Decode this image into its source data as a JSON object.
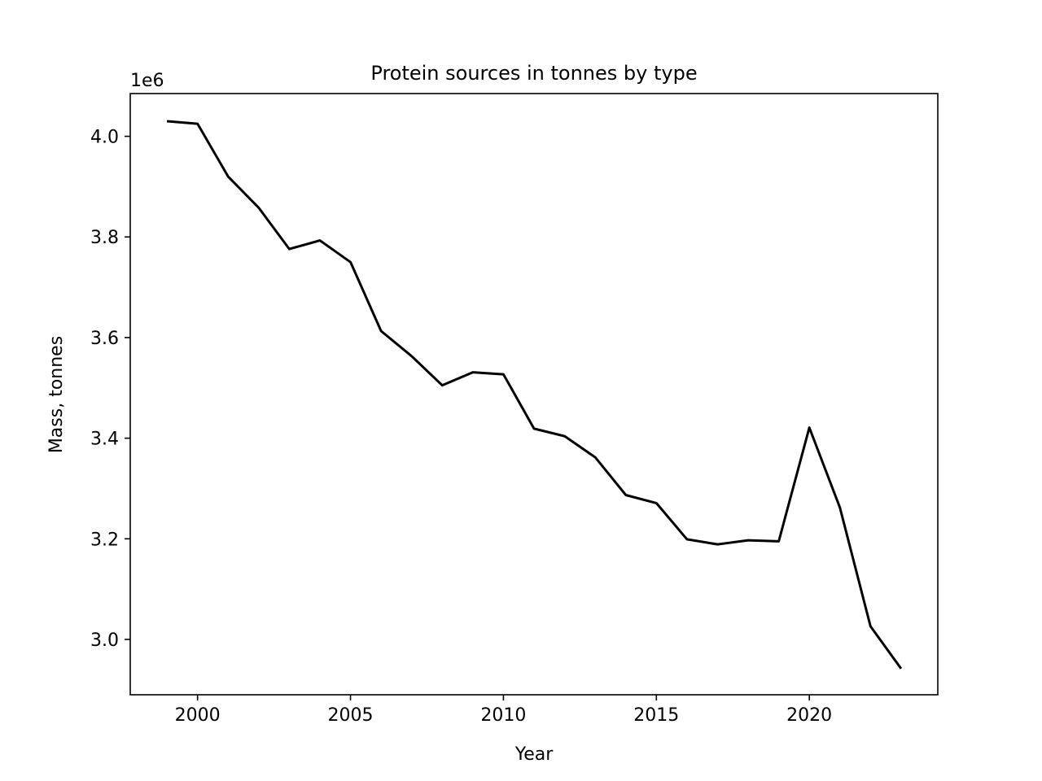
{
  "chart_data": {
    "type": "line",
    "title": "Protein sources in tonnes by type",
    "xlabel": "Year",
    "ylabel": "Mass, tonnes",
    "y_offset_label": "1e6",
    "y_scale_factor": 1000000,
    "xlim": [
      1997.8,
      2024.2
    ],
    "ylim": [
      2890000,
      4085000
    ],
    "x_ticks": [
      2000,
      2005,
      2010,
      2015,
      2020
    ],
    "x_tick_labels": [
      "2000",
      "2005",
      "2010",
      "2015",
      "2020"
    ],
    "y_ticks": [
      3000000,
      3200000,
      3400000,
      3600000,
      3800000,
      4000000
    ],
    "y_tick_labels": [
      "3.0",
      "3.2",
      "3.4",
      "3.6",
      "3.8",
      "4.0"
    ],
    "grid": false,
    "legend": "none",
    "series": [
      {
        "color": "#000000",
        "x": [
          1999,
          2000,
          2001,
          2002,
          2003,
          2004,
          2005,
          2006,
          2007,
          2008,
          2009,
          2010,
          2011,
          2012,
          2013,
          2014,
          2015,
          2016,
          2017,
          2018,
          2019,
          2020,
          2021,
          2022,
          2023
        ],
        "y": [
          4030000,
          4025000,
          3920000,
          3858000,
          3776000,
          3793000,
          3750000,
          3613000,
          3563000,
          3505000,
          3531000,
          3527000,
          3419000,
          3404000,
          3362000,
          3287000,
          3271000,
          3199000,
          3189000,
          3197000,
          3195000,
          3421000,
          3262000,
          3026000,
          2942000
        ]
      }
    ]
  }
}
